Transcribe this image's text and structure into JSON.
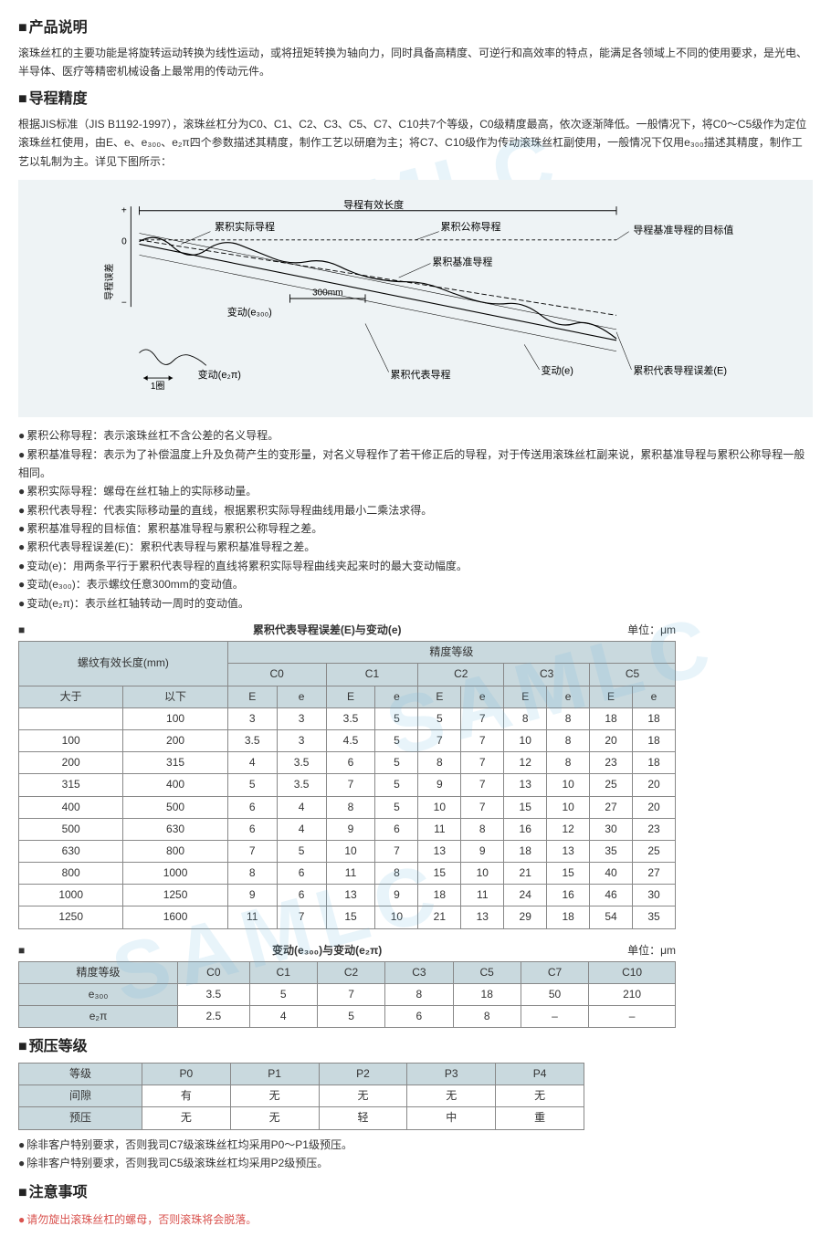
{
  "s1": {
    "title": "产品说明",
    "body": "滚珠丝杠的主要功能是将旋转运动转换为线性运动，或将扭矩转换为轴向力，同时具备高精度、可逆行和高效率的特点，能满足各领域上不同的使用要求，是光电、半导体、医疗等精密机械设备上最常用的传动元件。"
  },
  "s2": {
    "title": "导程精度",
    "body": "根据JIS标准（JIS B1192-1997），滚珠丝杠分为C0、C1、C2、C3、C5、C7、C10共7个等级，C0级精度最高，依次逐渐降低。一般情况下，将C0～C5级作为定位滚珠丝杠使用，由E、e、e₃₀₀、e₂π四个参数描述其精度，制作工艺以研磨为主；将C7、C10级作为传动滚珠丝杠副使用，一般情况下仅用e₃₀₀描述其精度，制作工艺以轧制为主。详见下图所示："
  },
  "diagram": {
    "labels": {
      "effective_len": "导程有效长度",
      "actual": "累积实际导程",
      "nominal": "累积公称导程",
      "target": "导程基准导程的目标值",
      "reference": "累积基准导程",
      "variation_e300": "变动(e₃₀₀)",
      "mm300": "300mm",
      "variation_e": "变动(e)",
      "rep_error": "累积代表导程误差(E)",
      "rep_lead": "累积代表导程",
      "one_turn": "1圈",
      "variation_e2pi": "变动(e₂π)",
      "yaxis": "导程误差"
    },
    "bg": "#eef3f5",
    "line_color": "#000000",
    "dash_color": "#000000"
  },
  "definitions": [
    "累积公称导程：表示滚珠丝杠不含公差的名义导程。",
    "累积基准导程：表示为了补偿温度上升及负荷产生的变形量，对名义导程作了若干修正后的导程，对于传送用滚珠丝杠副来说，累积基准导程与累积公称导程一般相同。",
    "累积实际导程：螺母在丝杠轴上的实际移动量。",
    "累积代表导程：代表实际移动量的直线，根据累积实际导程曲线用最小二乘法求得。",
    "累积基准导程的目标值：累积基准导程与累积公称导程之差。",
    "累积代表导程误差(E)：累积代表导程与累积基准导程之差。",
    "变动(e)：用两条平行于累积代表导程的直线将累积实际导程曲线夹起来时的最大变动幅度。",
    "变动(e₃₀₀)：表示螺纹任意300mm的变动值。",
    "变动(e₂π)：表示丝杠轴转动一周时的变动值。"
  ],
  "table1": {
    "title": "累积代表导程误差(E)与变动(e)",
    "unit": "单位：μm",
    "h_thread": "螺纹有效长度(mm)",
    "h_grade": "精度等级",
    "grades": [
      "C0",
      "C1",
      "C2",
      "C3",
      "C5"
    ],
    "sub": [
      "E",
      "e",
      "E",
      "e",
      "E",
      "e",
      "E",
      "e",
      "E",
      "e"
    ],
    "row_h": [
      "大于",
      "以下"
    ],
    "rows": [
      [
        "",
        "100",
        "3",
        "3",
        "3.5",
        "5",
        "5",
        "7",
        "8",
        "8",
        "18",
        "18"
      ],
      [
        "100",
        "200",
        "3.5",
        "3",
        "4.5",
        "5",
        "7",
        "7",
        "10",
        "8",
        "20",
        "18"
      ],
      [
        "200",
        "315",
        "4",
        "3.5",
        "6",
        "5",
        "8",
        "7",
        "12",
        "8",
        "23",
        "18"
      ],
      [
        "315",
        "400",
        "5",
        "3.5",
        "7",
        "5",
        "9",
        "7",
        "13",
        "10",
        "25",
        "20"
      ],
      [
        "400",
        "500",
        "6",
        "4",
        "8",
        "5",
        "10",
        "7",
        "15",
        "10",
        "27",
        "20"
      ],
      [
        "500",
        "630",
        "6",
        "4",
        "9",
        "6",
        "11",
        "8",
        "16",
        "12",
        "30",
        "23"
      ],
      [
        "630",
        "800",
        "7",
        "5",
        "10",
        "7",
        "13",
        "9",
        "18",
        "13",
        "35",
        "25"
      ],
      [
        "800",
        "1000",
        "8",
        "6",
        "11",
        "8",
        "15",
        "10",
        "21",
        "15",
        "40",
        "27"
      ],
      [
        "1000",
        "1250",
        "9",
        "6",
        "13",
        "9",
        "18",
        "11",
        "24",
        "16",
        "46",
        "30"
      ],
      [
        "1250",
        "1600",
        "11",
        "7",
        "15",
        "10",
        "21",
        "13",
        "29",
        "18",
        "54",
        "35"
      ]
    ]
  },
  "table2": {
    "title": "变动(e₃₀₀)与变动(e₂π)",
    "unit": "单位：μm",
    "h_grade": "精度等级",
    "grades": [
      "C0",
      "C1",
      "C2",
      "C3",
      "C5",
      "C7",
      "C10"
    ],
    "rows": [
      [
        "e₃₀₀",
        "3.5",
        "5",
        "7",
        "8",
        "18",
        "50",
        "210"
      ],
      [
        "e₂π",
        "2.5",
        "4",
        "5",
        "6",
        "8",
        "–",
        "–"
      ]
    ]
  },
  "s3": {
    "title": "预压等级",
    "h_grade": "等级",
    "grades": [
      "P0",
      "P1",
      "P2",
      "P3",
      "P4"
    ],
    "rows": [
      [
        "间隙",
        "有",
        "无",
        "无",
        "无",
        "无"
      ],
      [
        "预压",
        "无",
        "无",
        "轻",
        "中",
        "重"
      ]
    ],
    "notes": [
      "除非客户特别要求，否则我司C7级滚珠丝杠均采用P0～P1级预压。",
      "除非客户特别要求，否则我司C5级滚珠丝杠均采用P2级预压。"
    ]
  },
  "s4": {
    "title": "注意事项",
    "note": "请勿旋出滚珠丝杠的螺母，否则滚珠将会脱落。"
  },
  "watermark": "SAMLC"
}
